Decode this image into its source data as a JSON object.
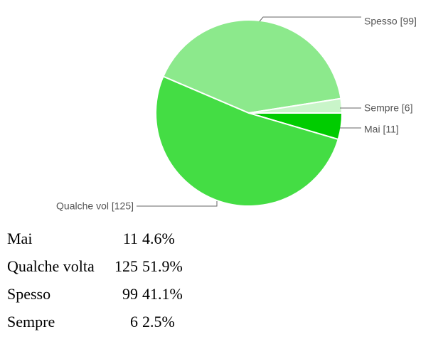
{
  "chart_data": {
    "type": "pie",
    "categories": [
      "Mai",
      "Qualche volta",
      "Spesso",
      "Sempre"
    ],
    "values": [
      11,
      125,
      99,
      6
    ],
    "slice_labels": [
      "Mai [11]",
      "Qualche vol [125]",
      "Spesso [99]",
      "Sempre [6]"
    ],
    "colors": [
      "#00cc00",
      "#44dd44",
      "#8ce98c",
      "#c9f5c9"
    ],
    "percent_labels": [
      "4.6%",
      "51.9%",
      "41.1%",
      "2.5%"
    ]
  }
}
